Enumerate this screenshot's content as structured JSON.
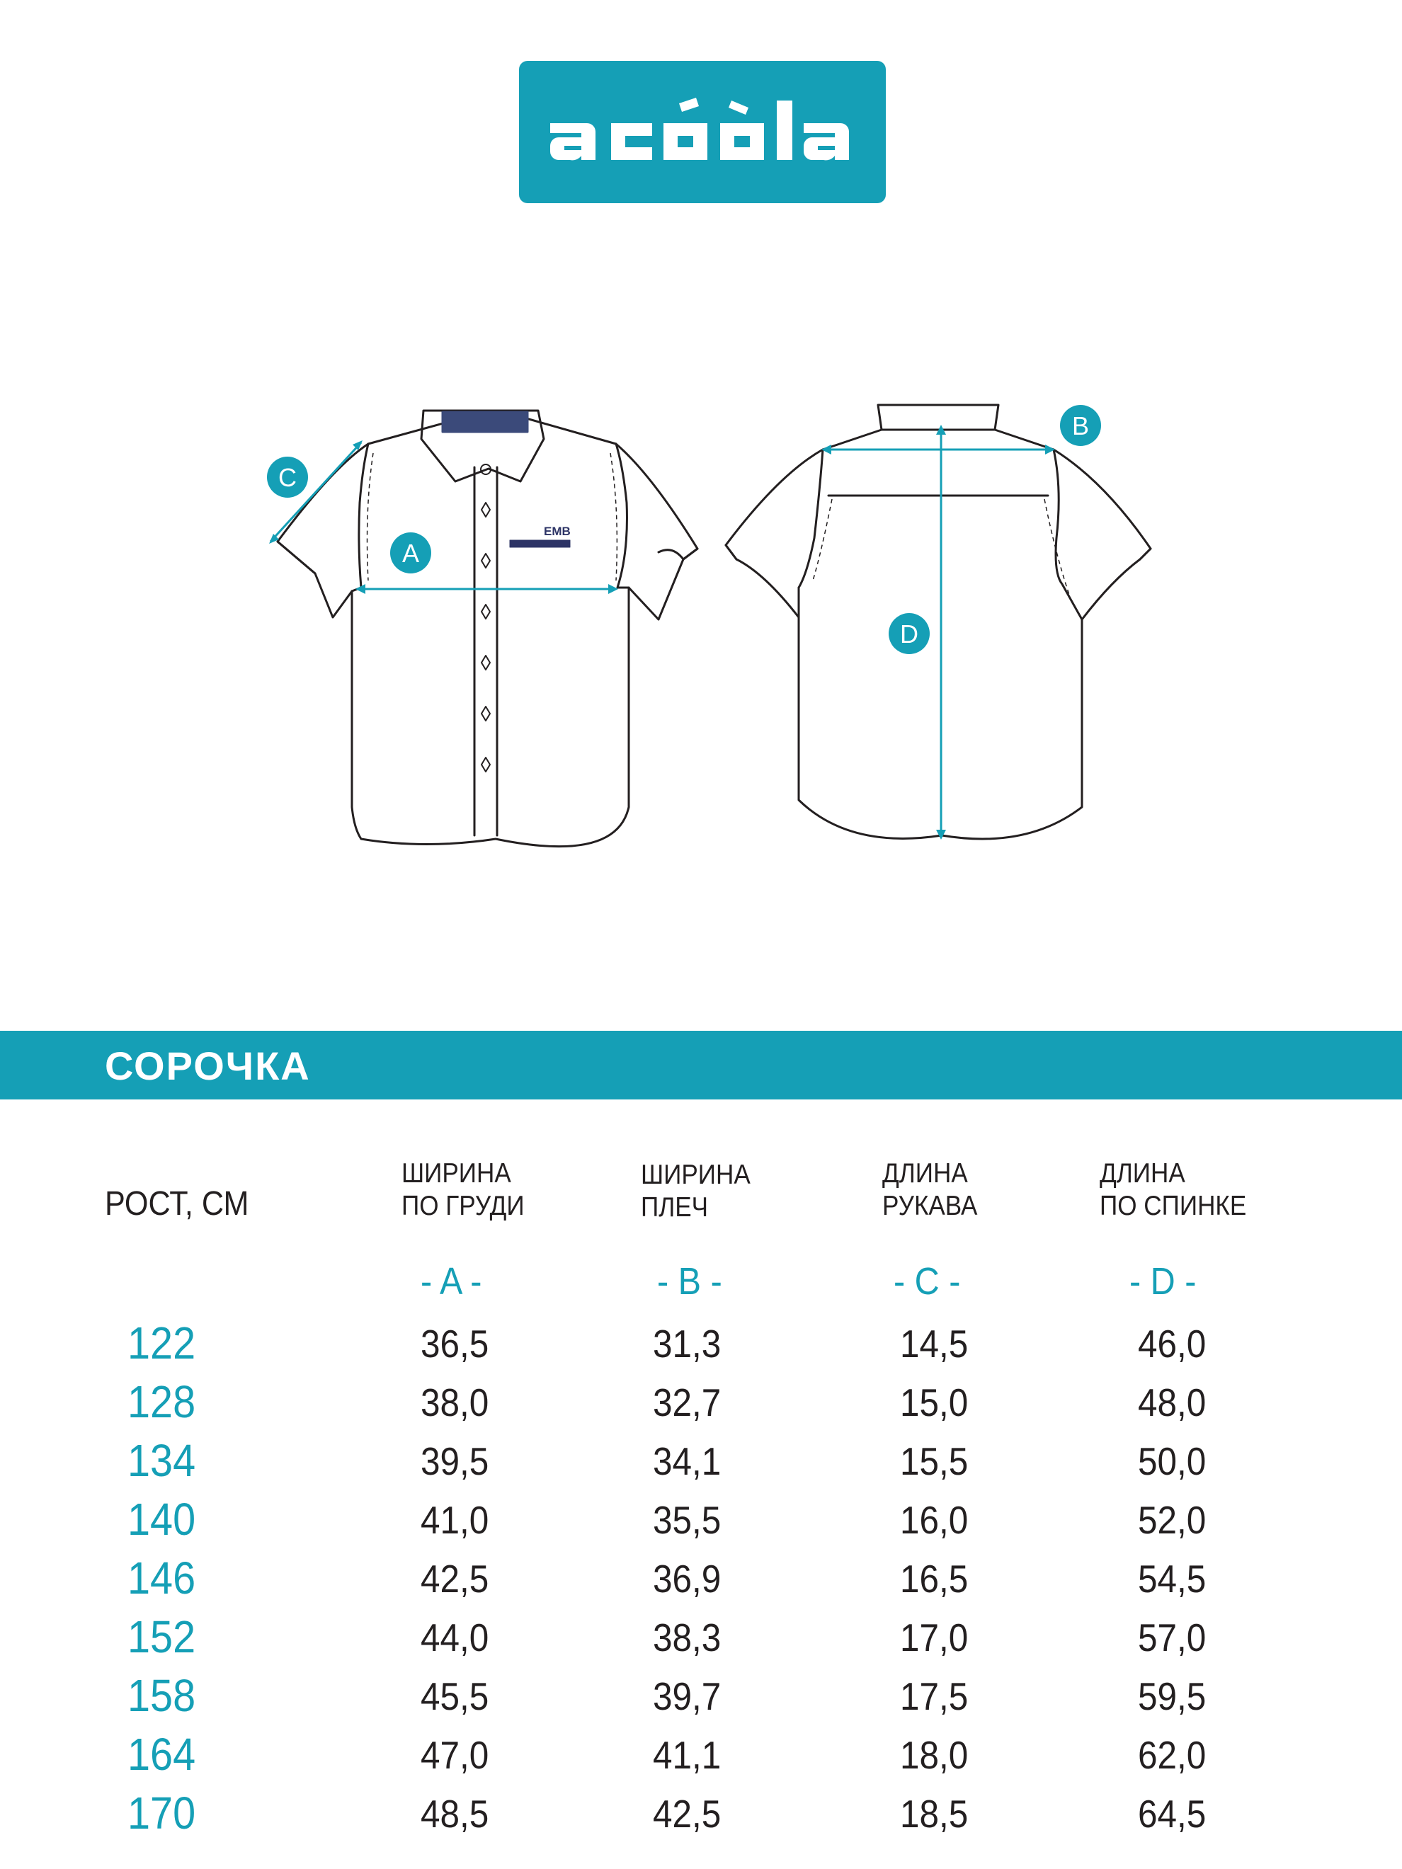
{
  "brand": {
    "logo_text": "acoola",
    "color": "#159fb6"
  },
  "diagram": {
    "front_label_emb": "EMB",
    "markers": [
      "A",
      "B",
      "C",
      "D"
    ]
  },
  "product": {
    "title": "СОРОЧКА"
  },
  "table": {
    "header_height": "РОСТ, СМ",
    "columns": [
      {
        "line1": "ШИРИНА",
        "line2": "ПО ГРУДИ",
        "letter": "- A -"
      },
      {
        "line1": "ШИРИНА",
        "line2": "ПЛЕЧ",
        "letter": "- B -"
      },
      {
        "line1": "ДЛИНА",
        "line2": "РУКАВА",
        "letter": "- C -"
      },
      {
        "line1": "ДЛИНА",
        "line2": "ПО СПИНКЕ",
        "letter": "- D -"
      }
    ],
    "rows": [
      {
        "height": "122",
        "values": [
          "36,5",
          "31,3",
          "14,5",
          "46,0"
        ]
      },
      {
        "height": "128",
        "values": [
          "38,0",
          "32,7",
          "15,0",
          "48,0"
        ]
      },
      {
        "height": "134",
        "values": [
          "39,5",
          "34,1",
          "15,5",
          "50,0"
        ]
      },
      {
        "height": "140",
        "values": [
          "41,0",
          "35,5",
          "16,0",
          "52,0"
        ]
      },
      {
        "height": "146",
        "values": [
          "42,5",
          "36,9",
          "16,5",
          "54,5"
        ]
      },
      {
        "height": "152",
        "values": [
          "44,0",
          "38,3",
          "17,0",
          "57,0"
        ]
      },
      {
        "height": "158",
        "values": [
          "45,5",
          "39,7",
          "17,5",
          "59,5"
        ]
      },
      {
        "height": "164",
        "values": [
          "47,0",
          "41,1",
          "18,0",
          "62,0"
        ]
      },
      {
        "height": "170",
        "values": [
          "48,5",
          "42,5",
          "18,5",
          "64,5"
        ]
      }
    ]
  }
}
